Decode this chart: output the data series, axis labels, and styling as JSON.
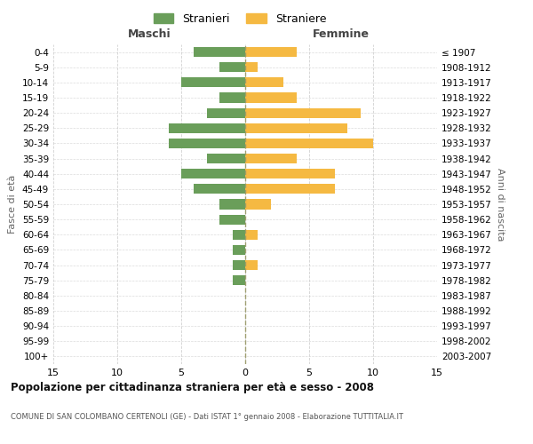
{
  "age_groups": [
    "0-4",
    "5-9",
    "10-14",
    "15-19",
    "20-24",
    "25-29",
    "30-34",
    "35-39",
    "40-44",
    "45-49",
    "50-54",
    "55-59",
    "60-64",
    "65-69",
    "70-74",
    "75-79",
    "80-84",
    "85-89",
    "90-94",
    "95-99",
    "100+"
  ],
  "birth_years": [
    "2003-2007",
    "1998-2002",
    "1993-1997",
    "1988-1992",
    "1983-1987",
    "1978-1982",
    "1973-1977",
    "1968-1972",
    "1963-1967",
    "1958-1962",
    "1953-1957",
    "1948-1952",
    "1943-1947",
    "1938-1942",
    "1933-1937",
    "1928-1932",
    "1923-1927",
    "1918-1922",
    "1913-1917",
    "1908-1912",
    "≤ 1907"
  ],
  "males": [
    4,
    2,
    5,
    2,
    3,
    6,
    6,
    3,
    5,
    4,
    2,
    2,
    1,
    1,
    1,
    1,
    0,
    0,
    0,
    0,
    0
  ],
  "females": [
    4,
    1,
    3,
    4,
    9,
    8,
    10,
    4,
    7,
    7,
    2,
    0,
    1,
    0,
    1,
    0,
    0,
    0,
    0,
    0,
    0
  ],
  "male_color": "#6a9e5a",
  "female_color": "#f5b942",
  "title": "Popolazione per cittadinanza straniera per età e sesso - 2008",
  "subtitle": "COMUNE DI SAN COLOMBANO CERTENOLI (GE) - Dati ISTAT 1° gennaio 2008 - Elaborazione TUTTITALIA.IT",
  "xlabel_left": "Maschi",
  "xlabel_right": "Femmine",
  "ylabel_left": "Fasce di età",
  "ylabel_right": "Anni di nascita",
  "legend_male": "Stranieri",
  "legend_female": "Straniere",
  "xlim": 15,
  "background_color": "#ffffff",
  "grid_color": "#cccccc"
}
